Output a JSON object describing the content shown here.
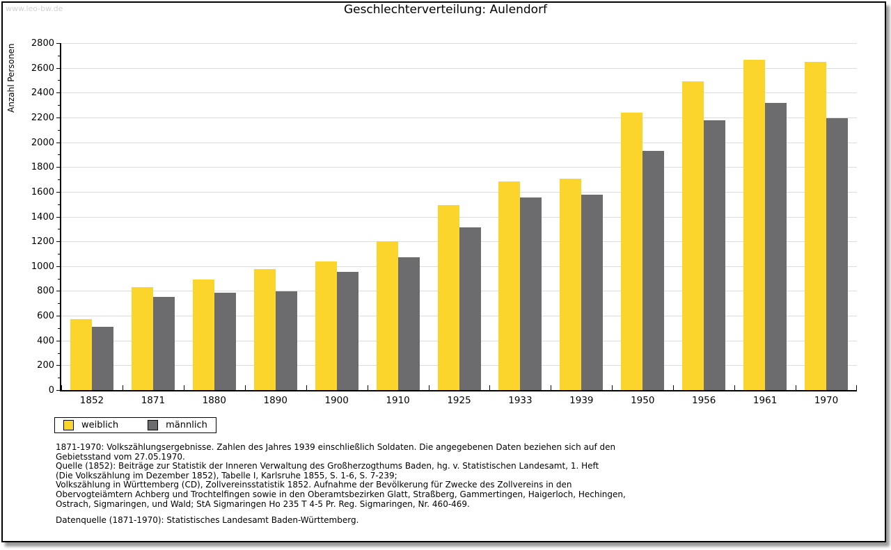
{
  "watermark": "www.leo-bw.de",
  "title": "Geschlechterverteilung: Aulendorf",
  "chart_data": {
    "type": "bar",
    "title": "Geschlechterverteilung: Aulendorf",
    "xlabel": "",
    "ylabel": "Anzahl Personen",
    "ylim": [
      0,
      2800
    ],
    "ytick_step": 200,
    "yminor_step": 100,
    "grid": true,
    "legend_position": "bottom-left",
    "categories": [
      "1852",
      "1871",
      "1880",
      "1890",
      "1900",
      "1910",
      "1925",
      "1933",
      "1939",
      "1950",
      "1956",
      "1961",
      "1970"
    ],
    "series": [
      {
        "name": "weiblich",
        "color": "#fbd42c",
        "values": [
          570,
          830,
          895,
          975,
          1040,
          1200,
          1490,
          1685,
          1705,
          2240,
          2490,
          2665,
          2650
        ]
      },
      {
        "name": "männlich",
        "color": "#6c6c6e",
        "values": [
          510,
          750,
          785,
          795,
          955,
          1070,
          1315,
          1555,
          1575,
          1930,
          2180,
          2320,
          2195
        ]
      }
    ]
  },
  "colors": {
    "weiblich": "#fbd42c",
    "maennlich": "#6c6c6e",
    "gridline": "#dcdcdc",
    "watermark": "#d2d2d2"
  },
  "footnotes": {
    "lines": [
      "1871-1970: Volkszählungsergebnisse. Zahlen des Jahres 1939 einschließlich Soldaten. Die angegebenen Daten beziehen sich auf den",
      "Gebietsstand vom 27.05.1970.",
      "Quelle (1852): Beiträge zur Statistik der Inneren Verwaltung des Großherzogthums Baden, hg. v. Statistischen Landesamt, 1. Heft",
      "(Die Volkszählung im Dezember 1852), Tabelle I, Karlsruhe 1855, S. 1-6, S. 7-239;",
      "Volkszählung in Württemberg (CD), Zollvereinsstatistik 1852. Aufnahme der Bevölkerung für Zwecke des Zollvereins in den",
      "Obervogteiämtern Achberg und Trochtelfingen sowie in den Oberamtsbezirken Glatt, Straßberg, Gammertingen, Haigerloch, Hechingen,",
      "Ostrach, Sigmaringen, und Wald; StA Sigmaringen Ho 235 T 4-5 Pr. Reg. Sigmaringen, Nr. 460-469."
    ],
    "datasource": "Datenquelle (1871-1970): Statistisches Landesamt Baden-Württemberg."
  }
}
